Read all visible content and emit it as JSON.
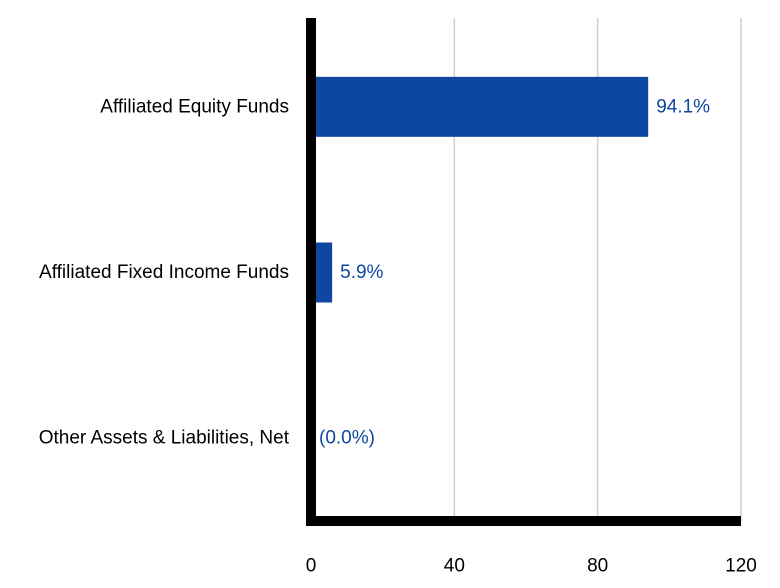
{
  "chart_data": {
    "type": "bar",
    "orientation": "horizontal",
    "title": "",
    "xlabel": "",
    "ylabel": "",
    "categories": [
      "Affiliated Equity Funds",
      "Affiliated Fixed Income Funds",
      "Other Assets & Liabilities, Net"
    ],
    "values": [
      94.1,
      5.9,
      0.0
    ],
    "data_labels": [
      "94.1%",
      "5.9%",
      "(0.0%)"
    ],
    "xlim": [
      0,
      120
    ],
    "xticks": [
      0,
      40,
      80,
      120
    ],
    "xtick_labels": [
      "0",
      "40",
      "80",
      "120"
    ],
    "grid": true,
    "legend": "none"
  },
  "colors": {
    "bar": "#0d47a1",
    "label": "#0d47a1",
    "axis": "#000000",
    "grid": "#d0d0d0",
    "text": "#000000"
  }
}
